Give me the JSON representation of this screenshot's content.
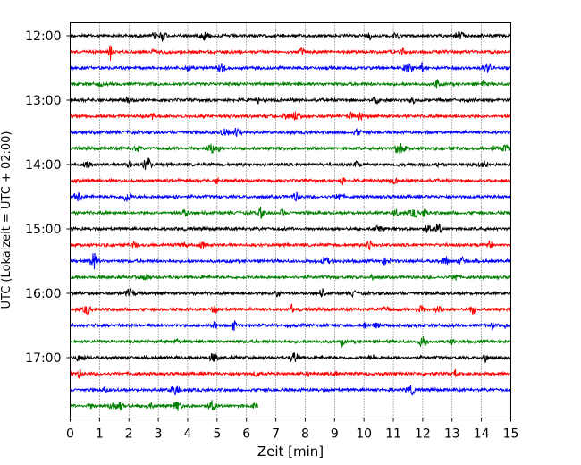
{
  "chart_data": {
    "type": "line",
    "title": "",
    "xlabel": "Zeit  [min]",
    "ylabel": "UTC (Lokalzeit = UTC + 02:00)",
    "xlim": [
      0,
      15
    ],
    "x_ticks": [
      "0",
      "1",
      "2",
      "3",
      "4",
      "5",
      "6",
      "7",
      "8",
      "9",
      "10",
      "11",
      "12",
      "13",
      "14",
      "15"
    ],
    "y_tick_labels": [
      "12:00",
      "13:00",
      "14:00",
      "15:00",
      "16:00",
      "17:00"
    ],
    "grid": "vertical dotted",
    "row_colors": [
      "#000000",
      "#ff0000",
      "#0000ff",
      "#008000"
    ],
    "series": [
      {
        "start": "12:00",
        "color": "#000000",
        "end_min": 15
      },
      {
        "start": "12:15",
        "color": "#ff0000",
        "end_min": 15
      },
      {
        "start": "12:30",
        "color": "#0000ff",
        "end_min": 15
      },
      {
        "start": "12:45",
        "color": "#008000",
        "end_min": 15
      },
      {
        "start": "13:00",
        "color": "#000000",
        "end_min": 15
      },
      {
        "start": "13:15",
        "color": "#ff0000",
        "end_min": 15
      },
      {
        "start": "13:30",
        "color": "#0000ff",
        "end_min": 15
      },
      {
        "start": "13:45",
        "color": "#008000",
        "end_min": 15
      },
      {
        "start": "14:00",
        "color": "#000000",
        "end_min": 15
      },
      {
        "start": "14:15",
        "color": "#ff0000",
        "end_min": 15
      },
      {
        "start": "14:30",
        "color": "#0000ff",
        "end_min": 15
      },
      {
        "start": "14:45",
        "color": "#008000",
        "end_min": 15
      },
      {
        "start": "15:00",
        "color": "#000000",
        "end_min": 15
      },
      {
        "start": "15:15",
        "color": "#ff0000",
        "end_min": 15
      },
      {
        "start": "15:30",
        "color": "#0000ff",
        "end_min": 15
      },
      {
        "start": "15:45",
        "color": "#008000",
        "end_min": 15
      },
      {
        "start": "16:00",
        "color": "#000000",
        "end_min": 15
      },
      {
        "start": "16:15",
        "color": "#ff0000",
        "end_min": 15
      },
      {
        "start": "16:30",
        "color": "#0000ff",
        "end_min": 15
      },
      {
        "start": "16:45",
        "color": "#008000",
        "end_min": 15
      },
      {
        "start": "17:00",
        "color": "#000000",
        "end_min": 15
      },
      {
        "start": "17:15",
        "color": "#ff0000",
        "end_min": 15
      },
      {
        "start": "17:30",
        "color": "#0000ff",
        "end_min": 15
      },
      {
        "start": "17:45",
        "color": "#008000",
        "end_min": 6.4
      }
    ]
  }
}
